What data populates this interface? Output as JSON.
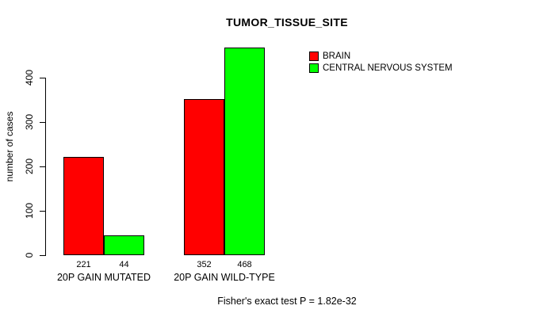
{
  "chart_data": {
    "type": "bar",
    "title": "TUMOR_TISSUE_SITE",
    "ylabel": "number of cases",
    "xlabel": "",
    "categories": [
      "20P GAIN MUTATED",
      "20P GAIN WILD-TYPE"
    ],
    "series": [
      {
        "name": "BRAIN",
        "color": "#FF0000",
        "values": [
          221,
          352
        ]
      },
      {
        "name": "CENTRAL NERVOUS SYSTEM",
        "color": "#00FF00",
        "values": [
          44,
          468
        ]
      }
    ],
    "yticks": [
      0,
      100,
      200,
      300,
      400
    ],
    "ylim": [
      0,
      480
    ],
    "bar_value_labels": [
      [
        221,
        44
      ],
      [
        352,
        468
      ]
    ],
    "grid": false,
    "legend_position": "top-right",
    "annotation": "Fisher's exact test P = 1.82e-32",
    "colors": {
      "axis": "#000000",
      "text": "#000000",
      "background": "#FFFFFF"
    }
  }
}
